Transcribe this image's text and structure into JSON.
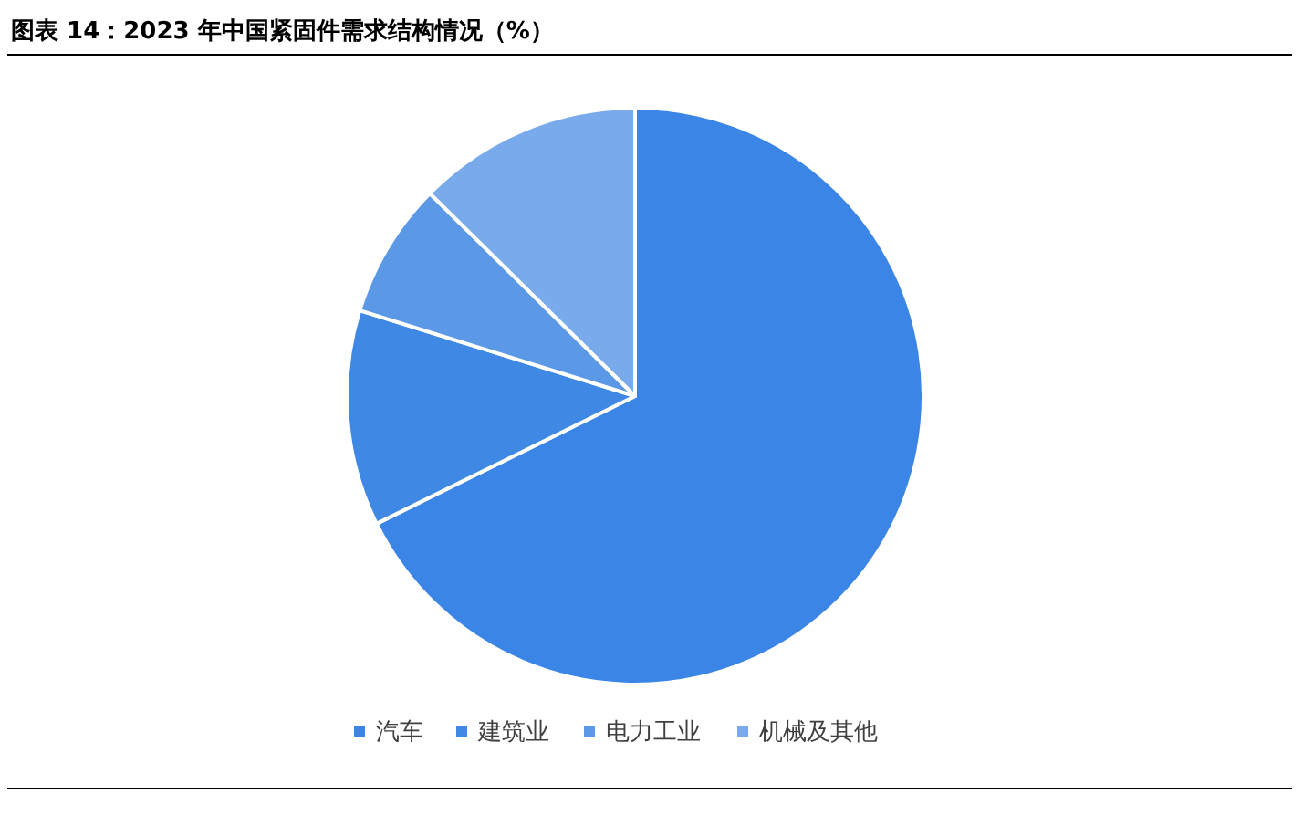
{
  "chart_data": {
    "type": "pie",
    "title": "图表 14：2023 年中国紧固件需求结构情况（%）",
    "categories": [
      "汽车",
      "建筑业",
      "电力工业",
      "机械及其他"
    ],
    "values": [
      67.7,
      12.1,
      7.6,
      12.6
    ],
    "colors": [
      "#3a85e6",
      "#3f89e4",
      "#5b99e6",
      "#78aaec"
    ],
    "legend": "bottom"
  }
}
